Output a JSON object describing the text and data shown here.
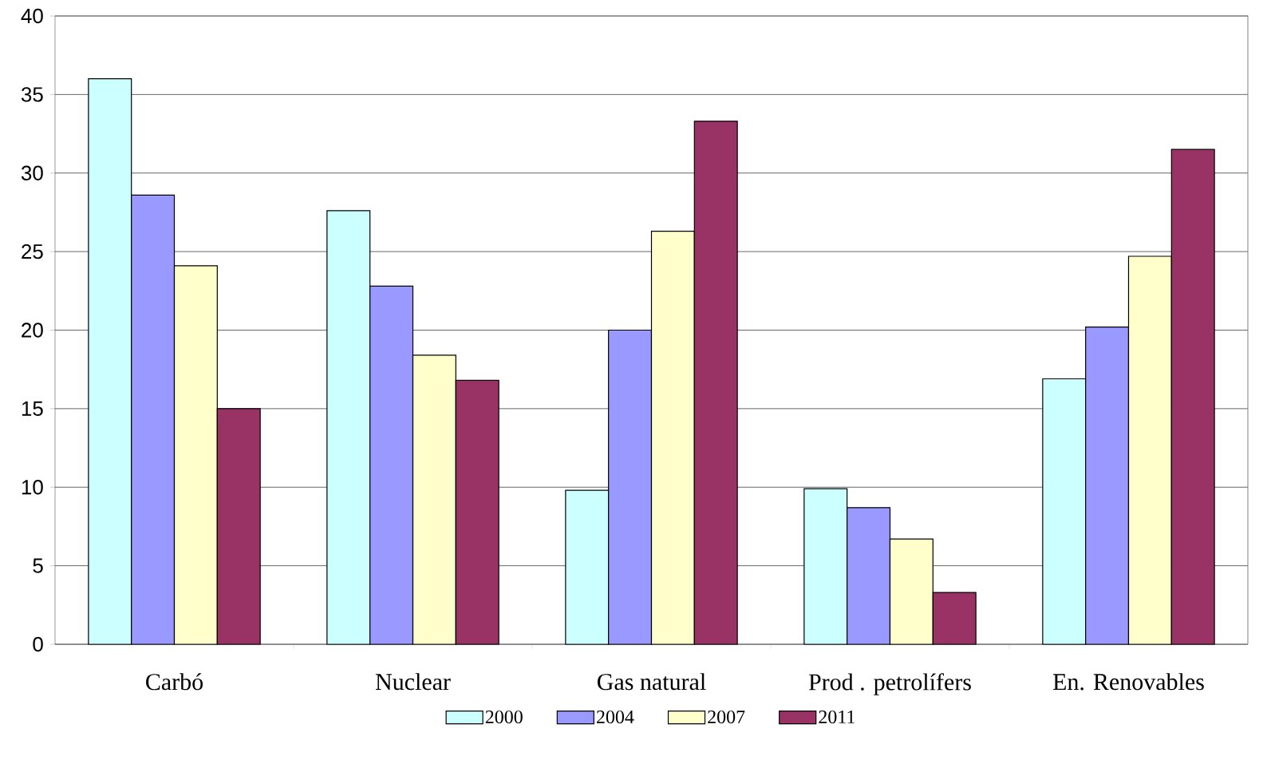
{
  "chart_data": {
    "type": "bar",
    "categories": [
      "Carbó",
      "Nuclear",
      "Gas natural",
      "Prod . petrolífers",
      "En. Renovables"
    ],
    "series": [
      {
        "name": "2000",
        "color": "#ccffff",
        "values": [
          36,
          27.6,
          9.8,
          9.9,
          16.9
        ]
      },
      {
        "name": "2004",
        "color": "#9999ff",
        "values": [
          28.6,
          22.8,
          20,
          8.7,
          20.2
        ]
      },
      {
        "name": "2007",
        "color": "#ffffcc",
        "values": [
          24.1,
          18.4,
          26.3,
          6.7,
          24.7
        ]
      },
      {
        "name": "2011",
        "color": "#993366",
        "values": [
          15,
          16.8,
          33.3,
          3.3,
          31.5
        ]
      }
    ],
    "ylim": [
      0,
      40
    ],
    "yticks": [
      0,
      5,
      10,
      15,
      20,
      25,
      30,
      35,
      40
    ],
    "grid": "y",
    "legend": "bottom"
  }
}
